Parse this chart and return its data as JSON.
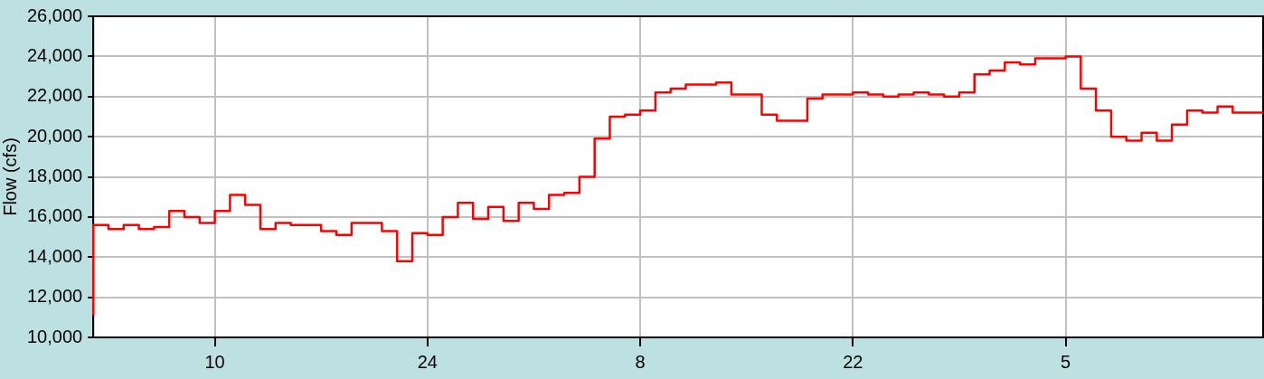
{
  "chart_data": {
    "type": "step",
    "ylabel": "Flow (cfs)",
    "x": [
      "--09-02",
      "--09-02",
      "--09-03",
      "--09-04",
      "--09-05",
      "--09-06",
      "--09-07",
      "--09-08",
      "--09-09",
      "--09-10",
      "--09-11",
      "--09-12",
      "--09-13",
      "--09-14",
      "--09-15",
      "--09-16",
      "--09-17",
      "--09-18",
      "--09-19",
      "--09-20",
      "--09-21",
      "--09-22",
      "--09-23",
      "--09-24",
      "--09-25",
      "--09-26",
      "--09-27",
      "--09-28",
      "--09-29",
      "--09-30",
      "--10-01",
      "--10-02",
      "--10-03",
      "--10-04",
      "--10-05",
      "--10-06",
      "--10-07",
      "--10-08",
      "--10-09",
      "--10-10",
      "--10-11",
      "--10-12",
      "--10-13",
      "--10-14",
      "--10-15",
      "--10-16",
      "--10-17",
      "--10-18",
      "--10-19",
      "--10-20",
      "--10-21",
      "--10-22",
      "--10-23",
      "--10-24",
      "--10-25",
      "--10-26",
      "--10-27",
      "--10-28",
      "--10-29",
      "--10-30",
      "--10-31",
      "--11-01",
      "--11-02",
      "--11-03",
      "--11-04",
      "--11-05",
      "--11-06",
      "--11-07",
      "--11-08",
      "--11-09",
      "--11-10",
      "--11-11",
      "--11-12",
      "--11-13",
      "--11-14",
      "--11-15",
      "--11-16",
      "--11-17",
      "--11-18"
    ],
    "series": [
      {
        "color": "#ff0000",
        "values": [
          11100,
          14000,
          15600,
          15400,
          15600,
          15400,
          15500,
          16300,
          16000,
          15700,
          16300,
          17100,
          16600,
          15400,
          15700,
          15600,
          15600,
          15300,
          15100,
          15700,
          15700,
          15300,
          13800,
          15200,
          15100,
          16000,
          16700,
          15900,
          16500,
          15800,
          16700,
          16400,
          17100,
          17200,
          18000,
          19900,
          21000,
          21100,
          21300,
          22200,
          22400,
          22600,
          22600,
          22700,
          22100,
          22100,
          21100,
          20800,
          20800,
          21900,
          22100,
          22100,
          22200,
          22100,
          22000,
          22100,
          22200,
          22100,
          22000,
          22200,
          23100,
          23300,
          23700,
          23600,
          23900,
          23900,
          24000,
          22400,
          21300,
          20000,
          19800,
          20200,
          19800,
          20600,
          21300,
          21200,
          21500,
          21200,
          21200
        ]
      }
    ],
    "xlim": [
      "--09-02",
      "--11-18"
    ],
    "xticks": [
      {
        "value": "--09-10",
        "label": "10"
      },
      {
        "value": "--09-24",
        "label": "24"
      },
      {
        "value": "--10-08",
        "label": "8"
      },
      {
        "value": "--10-22",
        "label": "22"
      },
      {
        "value": "--11-05",
        "label": "5"
      }
    ],
    "ylim": [
      10000,
      26000
    ],
    "yticks": [
      {
        "value": 10000,
        "label": "10,000"
      },
      {
        "value": 12000,
        "label": "12,000"
      },
      {
        "value": 14000,
        "label": "14,000"
      },
      {
        "value": 16000,
        "label": "16,000"
      },
      {
        "value": 18000,
        "label": "18,000"
      },
      {
        "value": 20000,
        "label": "20,000"
      },
      {
        "value": 22000,
        "label": "22,000"
      },
      {
        "value": 24000,
        "label": "24,000"
      },
      {
        "value": 26000,
        "label": "26,000"
      }
    ],
    "grid": true,
    "legend": false,
    "line_style": "solid",
    "marker": "none"
  }
}
